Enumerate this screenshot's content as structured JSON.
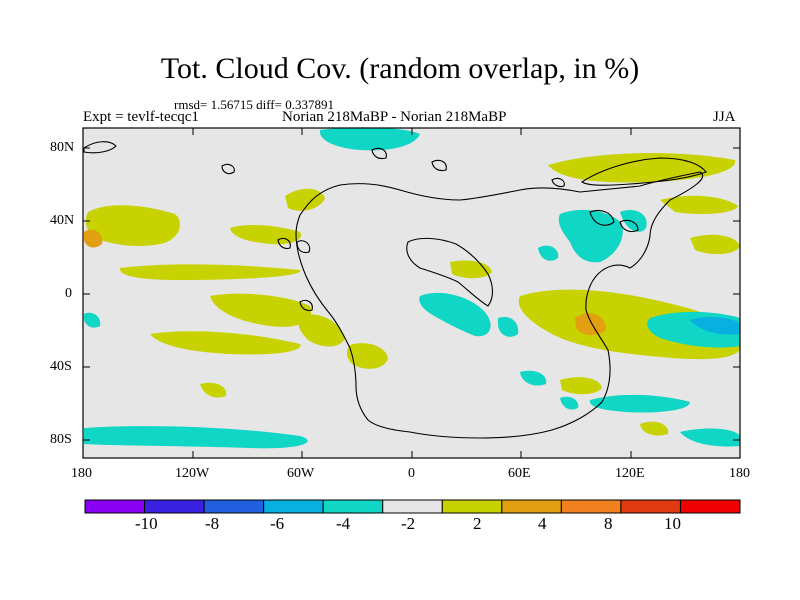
{
  "map": {
    "title": "Tot. Cloud Cov. (random overlap, in %)",
    "stats": "rmsd= 1.56715  diff= 0.337891",
    "experiment": "Expt = tevlf-tecqc1",
    "run": "Norian 218MaBP - Norian 218MaBP",
    "season": "JJA",
    "projection": "cylindrical equidistant",
    "lat_range": [
      -90,
      90
    ],
    "lon_range": [
      -180,
      180
    ],
    "lat_labels": [
      "80N",
      "40N",
      "0",
      "40S",
      "80S"
    ],
    "lon_labels": [
      "180",
      "120W",
      "60W",
      "0",
      "60E",
      "120E",
      "180"
    ],
    "background_color": "#e6e6e6"
  },
  "colorbar": {
    "colors": [
      "#8a00f5",
      "#3a20e0",
      "#2060e0",
      "#08b0e0",
      "#10d6c6",
      "#e6e6e6",
      "#c8d200",
      "#e2a010",
      "#f08020",
      "#e23a10",
      "#f00000"
    ],
    "labels": [
      "-10",
      "-8",
      "-6",
      "-4",
      "-2",
      "2",
      "4",
      "8",
      "10"
    ]
  }
}
